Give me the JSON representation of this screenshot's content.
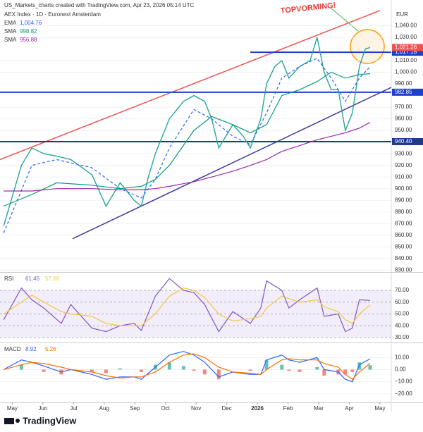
{
  "header": {
    "credit": "US_Markets_charts created with TradingView.com, Apr 23, 2026 05:14 UTC",
    "symbol": "AEX Index · 1D · Euronext Amsterdam",
    "currency": "EUR",
    "brand": "TradingView"
  },
  "chart_data": [
    {
      "type": "line",
      "color": "#26a69a",
      "annotation": "TOPVORMING!",
      "xlim": [
        0.6,
        13.37
      ],
      "xticks": [
        {
          "value": 1,
          "label": "May"
        },
        {
          "value": 2,
          "label": "Jun"
        },
        {
          "value": 3,
          "label": "Jul"
        },
        {
          "value": 4,
          "label": "Aug"
        },
        {
          "value": 5,
          "label": "Sep"
        },
        {
          "value": 6,
          "label": "Oct"
        },
        {
          "value": 7,
          "label": "Nov"
        },
        {
          "value": 8,
          "label": "Dec"
        },
        {
          "value": 9,
          "label": "2026"
        },
        {
          "value": 10,
          "label": "Feb"
        },
        {
          "value": 11,
          "label": "Mar"
        },
        {
          "value": 12,
          "label": "Apr"
        },
        {
          "value": 13,
          "label": "May"
        }
      ],
      "ylim": [
        829,
        1056
      ],
      "yticks": [
        {
          "value": 830,
          "label": "830.00"
        },
        {
          "value": 840,
          "label": "840.00"
        },
        {
          "value": 850,
          "label": "850.00"
        },
        {
          "value": 860,
          "label": "860.00"
        },
        {
          "value": 870,
          "label": "870.00"
        },
        {
          "value": 880,
          "label": "880.00"
        },
        {
          "value": 890,
          "label": "890.00"
        },
        {
          "value": 900,
          "label": "900.00"
        },
        {
          "value": 910,
          "label": "910.00"
        },
        {
          "value": 920,
          "label": "920.00"
        },
        {
          "value": 930,
          "label": "930.00"
        },
        {
          "value": 950,
          "label": "950.00"
        },
        {
          "value": 960,
          "label": "960.00"
        },
        {
          "value": 970,
          "label": "970.00"
        },
        {
          "value": 990,
          "label": "990.00"
        },
        {
          "value": 1000,
          "label": "1,000.00"
        },
        {
          "value": 1010,
          "label": "1,010.00"
        },
        {
          "value": 1030,
          "label": "1,030.00"
        },
        {
          "value": 1040,
          "label": "1,040.00"
        }
      ],
      "x": [
        0.72,
        1.3,
        1.64,
        2.03,
        2.45,
        2.91,
        3.6,
        4.06,
        4.52,
        4.98,
        5.21,
        5.44,
        5.67,
        6.13,
        6.59,
        6.93,
        7.28,
        7.51,
        7.74,
        7.97,
        8.2,
        8.54,
        8.77,
        9.11,
        9.3,
        9.57,
        9.8,
        10.03,
        10.38,
        10.72,
        10.95,
        11.18,
        11.41,
        11.64,
        11.87,
        12.1,
        12.33,
        12.52,
        12.68
      ],
      "values": [
        868,
        920,
        935,
        930,
        928,
        925,
        912,
        885,
        905,
        890,
        885,
        910,
        930,
        960,
        975,
        980,
        975,
        960,
        935,
        945,
        955,
        945,
        935,
        960,
        990,
        1005,
        1010,
        995,
        1005,
        1010,
        1030,
        1000,
        985,
        985,
        950,
        965,
        1005,
        1020,
        1021.26
      ],
      "last": {
        "value": 1021.26,
        "label": "1,021.26",
        "color": "#ef5350"
      },
      "series": [
        {
          "name": "EMA",
          "color": "#2962ff",
          "dashed": true,
          "last_value": 1004.76,
          "last_label": "1,004.76",
          "x": [
            0.72,
            1.64,
            2.45,
            3.6,
            4.52,
            5.21,
            5.67,
            6.13,
            6.93,
            7.51,
            8.2,
            8.77,
            9.3,
            9.8,
            10.38,
            10.95,
            11.41,
            11.87,
            12.33,
            12.68
          ],
          "values": [
            862,
            920,
            925,
            918,
            900,
            892,
            908,
            935,
            968,
            960,
            945,
            938,
            965,
            995,
            1005,
            1012,
            995,
            975,
            995,
            1004.76
          ]
        },
        {
          "name": "SMA",
          "color": "#089981",
          "dashed": false,
          "last_value": 998.82,
          "last_label": "998.82",
          "x": [
            0.72,
            1.64,
            2.45,
            3.6,
            4.52,
            5.21,
            5.67,
            6.13,
            6.93,
            7.51,
            8.2,
            8.77,
            9.3,
            9.8,
            10.38,
            10.95,
            11.41,
            11.87,
            12.33,
            12.68
          ],
          "values": [
            885,
            895,
            905,
            903,
            900,
            902,
            908,
            920,
            950,
            962,
            955,
            948,
            955,
            980,
            985,
            992,
            1000,
            995,
            998,
            998.82
          ]
        },
        {
          "name": "SMA",
          "color": "#9c27b0",
          "dashed": false,
          "last_value": 956.88,
          "last_label": "956.88",
          "x": [
            0.72,
            1.64,
            2.45,
            3.6,
            4.52,
            5.21,
            5.67,
            6.13,
            6.93,
            7.51,
            8.2,
            8.77,
            9.3,
            9.8,
            10.38,
            10.95,
            11.41,
            11.87,
            12.33,
            12.68
          ],
          "values": [
            898,
            898,
            900,
            900,
            899,
            899,
            900,
            902,
            906,
            910,
            915,
            920,
            925,
            932,
            937,
            942,
            945,
            948,
            952,
            956.88
          ]
        }
      ],
      "levels": [
        {
          "value": 1017.18,
          "label": "1,017.18",
          "color": "#1e40c8",
          "x_from": 8.77
        },
        {
          "value": 982.85,
          "label": "982.85",
          "color": "#1e40c8",
          "x_from": 0.6
        },
        {
          "value": 940.4,
          "label": "940.40",
          "color": "#1e3a8a",
          "x_from": 0.6
        }
      ],
      "trendlines": [
        {
          "color": "#ef5350",
          "x": [
            0.6,
            13.0
          ],
          "values": [
            925,
            1053
          ]
        },
        {
          "color": "#3f3a9e",
          "x": [
            2.97,
            13.37
          ],
          "values": [
            857,
            987
          ]
        }
      ]
    },
    {
      "type": "line",
      "title": "RSI",
      "ylim": [
        26.4,
        84.3
      ],
      "band": [
        30,
        70
      ],
      "yticks": [
        {
          "value": 30,
          "label": "30.00"
        },
        {
          "value": 40,
          "label": "40.00"
        },
        {
          "value": 50,
          "label": "50.00"
        },
        {
          "value": 60,
          "label": "60.00"
        },
        {
          "value": 70,
          "label": "70.00"
        }
      ],
      "x": [
        0.72,
        1.3,
        1.64,
        2.03,
        2.6,
        2.91,
        3.6,
        4.06,
        4.52,
        4.98,
        5.21,
        5.67,
        6.13,
        6.59,
        6.93,
        7.28,
        7.74,
        8.2,
        8.77,
        9.11,
        9.3,
        9.8,
        10.03,
        10.38,
        10.95,
        11.18,
        11.64,
        11.87,
        12.1,
        12.33,
        12.68
      ],
      "series": [
        {
          "color": "#7e57c2",
          "last_value": 61.45,
          "last_label": "61.45",
          "values": [
            45,
            72,
            62,
            55,
            42,
            58,
            38,
            35,
            40,
            42,
            36,
            65,
            80,
            70,
            68,
            58,
            35,
            52,
            42,
            55,
            78,
            70,
            55,
            62,
            72,
            48,
            50,
            35,
            38,
            62,
            61.45
          ]
        },
        {
          "color": "#f5c542",
          "last_value": 57.68,
          "last_label": "57.68",
          "values": [
            50,
            60,
            66,
            60,
            52,
            50,
            48,
            42,
            40,
            40,
            40,
            50,
            65,
            72,
            70,
            64,
            50,
            44,
            46,
            48,
            55,
            65,
            63,
            60,
            62,
            56,
            52,
            45,
            42,
            50,
            57.68
          ]
        }
      ]
    },
    {
      "type": "macd",
      "title": "MACD",
      "ylim": [
        -26.5,
        21.2
      ],
      "yticks": [
        {
          "value": -20,
          "label": "−20.00"
        },
        {
          "value": -10,
          "label": "−10.00"
        },
        {
          "value": 0,
          "label": "0.00"
        },
        {
          "value": 10,
          "label": "10.00"
        }
      ],
      "x": [
        0.72,
        1.3,
        1.64,
        2.03,
        2.6,
        2.91,
        3.6,
        4.06,
        4.52,
        4.98,
        5.21,
        5.67,
        6.13,
        6.59,
        6.93,
        7.28,
        7.74,
        8.2,
        8.77,
        9.11,
        9.3,
        9.8,
        10.03,
        10.38,
        10.95,
        11.18,
        11.64,
        11.87,
        12.1,
        12.33,
        12.68
      ],
      "histogram": {
        "up_color": "#26a69a",
        "down_color": "#ef5350",
        "values": [
          0,
          4,
          0,
          -2,
          -4,
          0,
          -2,
          -3,
          1,
          0,
          -2,
          4,
          6,
          3,
          -1,
          -4,
          -8,
          0,
          -1,
          0,
          8,
          4,
          -1,
          -2,
          2,
          -5,
          -4,
          -4,
          -2,
          6,
          3.66
        ]
      },
      "series": [
        {
          "color": "#2962ff",
          "last_value": 8.92,
          "last_label": "8.92",
          "values": [
            0,
            8,
            6,
            3,
            -2,
            0,
            -4,
            -8,
            -6,
            -6,
            -8,
            2,
            12,
            15,
            12,
            6,
            -6,
            -2,
            -4,
            -4,
            8,
            12,
            8,
            6,
            10,
            0,
            -2,
            -8,
            -10,
            4,
            8.92
          ]
        },
        {
          "color": "#ff6d00",
          "last_value": 5.26,
          "last_label": "5.26",
          "values": [
            0,
            4,
            6,
            5,
            2,
            0,
            -2,
            -5,
            -7,
            -6,
            -6,
            -2,
            6,
            12,
            13,
            10,
            2,
            -2,
            -3,
            -4,
            0,
            8,
            9,
            8,
            8,
            5,
            2,
            -4,
            -8,
            -2,
            5.26
          ]
        }
      ]
    }
  ]
}
